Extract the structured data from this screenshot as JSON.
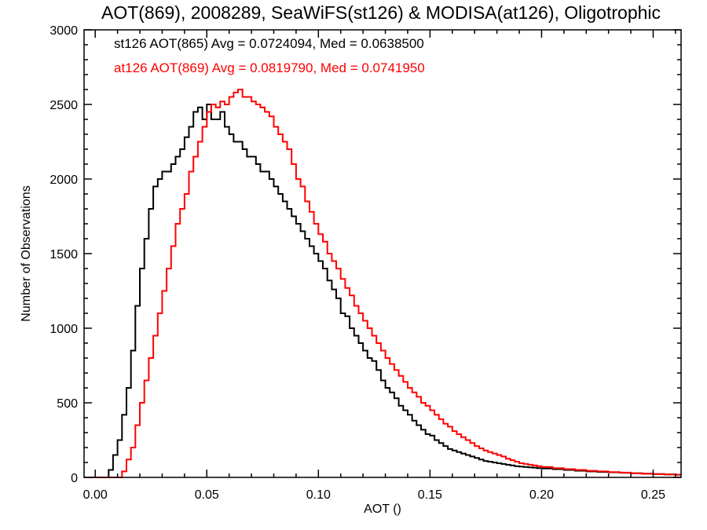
{
  "chart_data": {
    "type": "line",
    "title": "AOT(869), 2008289, SeaWiFS(st126) & MODISA(at126), Oligotrophic",
    "xlabel": "AOT ()",
    "ylabel": "Number of Observations",
    "xlim": [
      -0.005,
      0.2625
    ],
    "ylim": [
      0,
      3000
    ],
    "xticks": [
      0.0,
      0.05,
      0.1,
      0.15,
      0.2,
      0.25
    ],
    "xtick_labels": [
      "0.00",
      "0.05",
      "0.10",
      "0.15",
      "0.20",
      "0.25"
    ],
    "yticks": [
      0,
      500,
      1000,
      1500,
      2000,
      2500,
      3000
    ],
    "ytick_labels": [
      "0",
      "500",
      "1000",
      "1500",
      "2000",
      "2500",
      "3000"
    ],
    "grid": false,
    "legend_placement": "top-left",
    "series": [
      {
        "name": "st126 AOT(865) Avg = 0.0724094, Med = 0.0638500",
        "color": "#000000",
        "step": true,
        "points": [
          [
            -0.005,
            0
          ],
          [
            0.0045,
            0
          ],
          [
            0.006,
            50
          ],
          [
            0.008,
            150
          ],
          [
            0.01,
            250
          ],
          [
            0.012,
            420
          ],
          [
            0.014,
            600
          ],
          [
            0.016,
            850
          ],
          [
            0.018,
            1150
          ],
          [
            0.02,
            1400
          ],
          [
            0.022,
            1600
          ],
          [
            0.024,
            1800
          ],
          [
            0.026,
            1950
          ],
          [
            0.028,
            2000
          ],
          [
            0.03,
            2050
          ],
          [
            0.032,
            2050
          ],
          [
            0.034,
            2100
          ],
          [
            0.036,
            2150
          ],
          [
            0.038,
            2200
          ],
          [
            0.04,
            2280
          ],
          [
            0.042,
            2350
          ],
          [
            0.044,
            2450
          ],
          [
            0.046,
            2480
          ],
          [
            0.048,
            2400
          ],
          [
            0.05,
            2500
          ],
          [
            0.052,
            2400
          ],
          [
            0.054,
            2400
          ],
          [
            0.056,
            2450
          ],
          [
            0.058,
            2350
          ],
          [
            0.06,
            2300
          ],
          [
            0.062,
            2250
          ],
          [
            0.064,
            2250
          ],
          [
            0.066,
            2200
          ],
          [
            0.068,
            2150
          ],
          [
            0.07,
            2150
          ],
          [
            0.072,
            2100
          ],
          [
            0.074,
            2050
          ],
          [
            0.076,
            2050
          ],
          [
            0.078,
            2000
          ],
          [
            0.08,
            1950
          ],
          [
            0.082,
            1900
          ],
          [
            0.084,
            1850
          ],
          [
            0.086,
            1800
          ],
          [
            0.088,
            1750
          ],
          [
            0.09,
            1700
          ],
          [
            0.092,
            1650
          ],
          [
            0.094,
            1600
          ],
          [
            0.096,
            1550
          ],
          [
            0.098,
            1500
          ],
          [
            0.1,
            1450
          ],
          [
            0.102,
            1400
          ],
          [
            0.104,
            1320
          ],
          [
            0.106,
            1260
          ],
          [
            0.108,
            1200
          ],
          [
            0.11,
            1100
          ],
          [
            0.112,
            1080
          ],
          [
            0.114,
            1000
          ],
          [
            0.116,
            950
          ],
          [
            0.118,
            900
          ],
          [
            0.12,
            850
          ],
          [
            0.122,
            800
          ],
          [
            0.124,
            780
          ],
          [
            0.126,
            720
          ],
          [
            0.128,
            650
          ],
          [
            0.13,
            600
          ],
          [
            0.132,
            570
          ],
          [
            0.134,
            530
          ],
          [
            0.136,
            480
          ],
          [
            0.138,
            450
          ],
          [
            0.14,
            420
          ],
          [
            0.142,
            380
          ],
          [
            0.144,
            350
          ],
          [
            0.146,
            320
          ],
          [
            0.148,
            290
          ],
          [
            0.15,
            280
          ],
          [
            0.152,
            250
          ],
          [
            0.154,
            230
          ],
          [
            0.156,
            210
          ],
          [
            0.158,
            190
          ],
          [
            0.16,
            180
          ],
          [
            0.162,
            170
          ],
          [
            0.164,
            160
          ],
          [
            0.166,
            150
          ],
          [
            0.168,
            140
          ],
          [
            0.17,
            130
          ],
          [
            0.172,
            120
          ],
          [
            0.174,
            110
          ],
          [
            0.176,
            105
          ],
          [
            0.178,
            100
          ],
          [
            0.18,
            95
          ],
          [
            0.182,
            90
          ],
          [
            0.184,
            85
          ],
          [
            0.186,
            80
          ],
          [
            0.188,
            75
          ],
          [
            0.19,
            72
          ],
          [
            0.192,
            70
          ],
          [
            0.194,
            67
          ],
          [
            0.196,
            65
          ],
          [
            0.198,
            62
          ],
          [
            0.2,
            60
          ],
          [
            0.205,
            55
          ],
          [
            0.21,
            50
          ],
          [
            0.215,
            45
          ],
          [
            0.22,
            40
          ],
          [
            0.225,
            37
          ],
          [
            0.23,
            34
          ],
          [
            0.235,
            31
          ],
          [
            0.24,
            28
          ],
          [
            0.245,
            25
          ],
          [
            0.25,
            22
          ],
          [
            0.255,
            20
          ],
          [
            0.26,
            18
          ],
          [
            0.2625,
            17
          ]
        ]
      },
      {
        "name": "at126 AOT(869) Avg = 0.0819790, Med = 0.0741950",
        "color": "#ff0000",
        "step": true,
        "points": [
          [
            -0.005,
            0
          ],
          [
            0.01,
            0
          ],
          [
            0.012,
            40
          ],
          [
            0.014,
            120
          ],
          [
            0.016,
            200
          ],
          [
            0.018,
            350
          ],
          [
            0.02,
            500
          ],
          [
            0.022,
            650
          ],
          [
            0.024,
            800
          ],
          [
            0.026,
            950
          ],
          [
            0.028,
            1100
          ],
          [
            0.03,
            1250
          ],
          [
            0.032,
            1400
          ],
          [
            0.034,
            1550
          ],
          [
            0.036,
            1700
          ],
          [
            0.038,
            1800
          ],
          [
            0.04,
            1900
          ],
          [
            0.042,
            2050
          ],
          [
            0.044,
            2150
          ],
          [
            0.046,
            2250
          ],
          [
            0.048,
            2350
          ],
          [
            0.05,
            2450
          ],
          [
            0.052,
            2500
          ],
          [
            0.054,
            2480
          ],
          [
            0.056,
            2520
          ],
          [
            0.058,
            2500
          ],
          [
            0.06,
            2550
          ],
          [
            0.062,
            2580
          ],
          [
            0.064,
            2600
          ],
          [
            0.066,
            2550
          ],
          [
            0.068,
            2550
          ],
          [
            0.07,
            2520
          ],
          [
            0.072,
            2500
          ],
          [
            0.074,
            2480
          ],
          [
            0.076,
            2450
          ],
          [
            0.078,
            2420
          ],
          [
            0.08,
            2350
          ],
          [
            0.082,
            2300
          ],
          [
            0.084,
            2250
          ],
          [
            0.086,
            2200
          ],
          [
            0.088,
            2100
          ],
          [
            0.09,
            2000
          ],
          [
            0.092,
            1950
          ],
          [
            0.094,
            1850
          ],
          [
            0.096,
            1780
          ],
          [
            0.098,
            1700
          ],
          [
            0.1,
            1630
          ],
          [
            0.102,
            1580
          ],
          [
            0.104,
            1500
          ],
          [
            0.106,
            1450
          ],
          [
            0.108,
            1400
          ],
          [
            0.11,
            1330
          ],
          [
            0.112,
            1270
          ],
          [
            0.114,
            1220
          ],
          [
            0.116,
            1150
          ],
          [
            0.118,
            1100
          ],
          [
            0.12,
            1050
          ],
          [
            0.122,
            1000
          ],
          [
            0.124,
            950
          ],
          [
            0.126,
            900
          ],
          [
            0.128,
            850
          ],
          [
            0.13,
            800
          ],
          [
            0.132,
            760
          ],
          [
            0.134,
            720
          ],
          [
            0.136,
            680
          ],
          [
            0.138,
            640
          ],
          [
            0.14,
            600
          ],
          [
            0.142,
            570
          ],
          [
            0.144,
            540
          ],
          [
            0.146,
            500
          ],
          [
            0.148,
            480
          ],
          [
            0.15,
            450
          ],
          [
            0.152,
            420
          ],
          [
            0.154,
            390
          ],
          [
            0.156,
            360
          ],
          [
            0.158,
            340
          ],
          [
            0.16,
            310
          ],
          [
            0.162,
            290
          ],
          [
            0.164,
            270
          ],
          [
            0.166,
            250
          ],
          [
            0.168,
            230
          ],
          [
            0.17,
            210
          ],
          [
            0.172,
            195
          ],
          [
            0.174,
            180
          ],
          [
            0.176,
            170
          ],
          [
            0.178,
            160
          ],
          [
            0.18,
            150
          ],
          [
            0.182,
            140
          ],
          [
            0.184,
            125
          ],
          [
            0.186,
            115
          ],
          [
            0.188,
            105
          ],
          [
            0.19,
            95
          ],
          [
            0.192,
            90
          ],
          [
            0.194,
            85
          ],
          [
            0.196,
            80
          ],
          [
            0.198,
            75
          ],
          [
            0.2,
            70
          ],
          [
            0.205,
            62
          ],
          [
            0.21,
            55
          ],
          [
            0.215,
            50
          ],
          [
            0.22,
            44
          ],
          [
            0.225,
            40
          ],
          [
            0.23,
            36
          ],
          [
            0.235,
            32
          ],
          [
            0.24,
            28
          ],
          [
            0.245,
            25
          ],
          [
            0.25,
            22
          ],
          [
            0.255,
            20
          ],
          [
            0.26,
            18
          ],
          [
            0.2625,
            17
          ]
        ]
      }
    ]
  }
}
